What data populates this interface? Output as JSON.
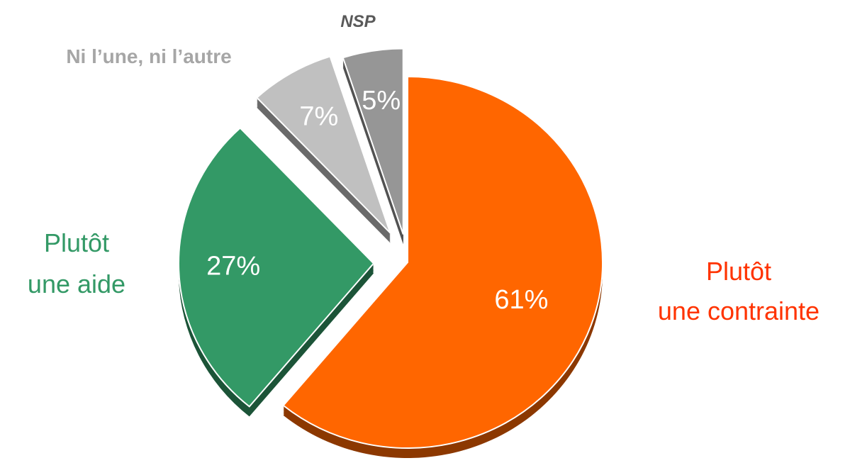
{
  "chart_data": {
    "type": "pie",
    "categories": [
      "Plutôt\nune contrainte",
      "Plutôt\nune aide",
      "Ni l’une, ni l’autre",
      "NSP"
    ],
    "values": [
      61,
      27,
      7,
      5
    ],
    "value_labels": [
      "61%",
      "27%",
      "7%",
      "5%"
    ],
    "colors": [
      "#ff6600",
      "#339966",
      "#c0c0c0",
      "#969696"
    ],
    "start_angle": 0,
    "direction": "clockwise"
  }
}
